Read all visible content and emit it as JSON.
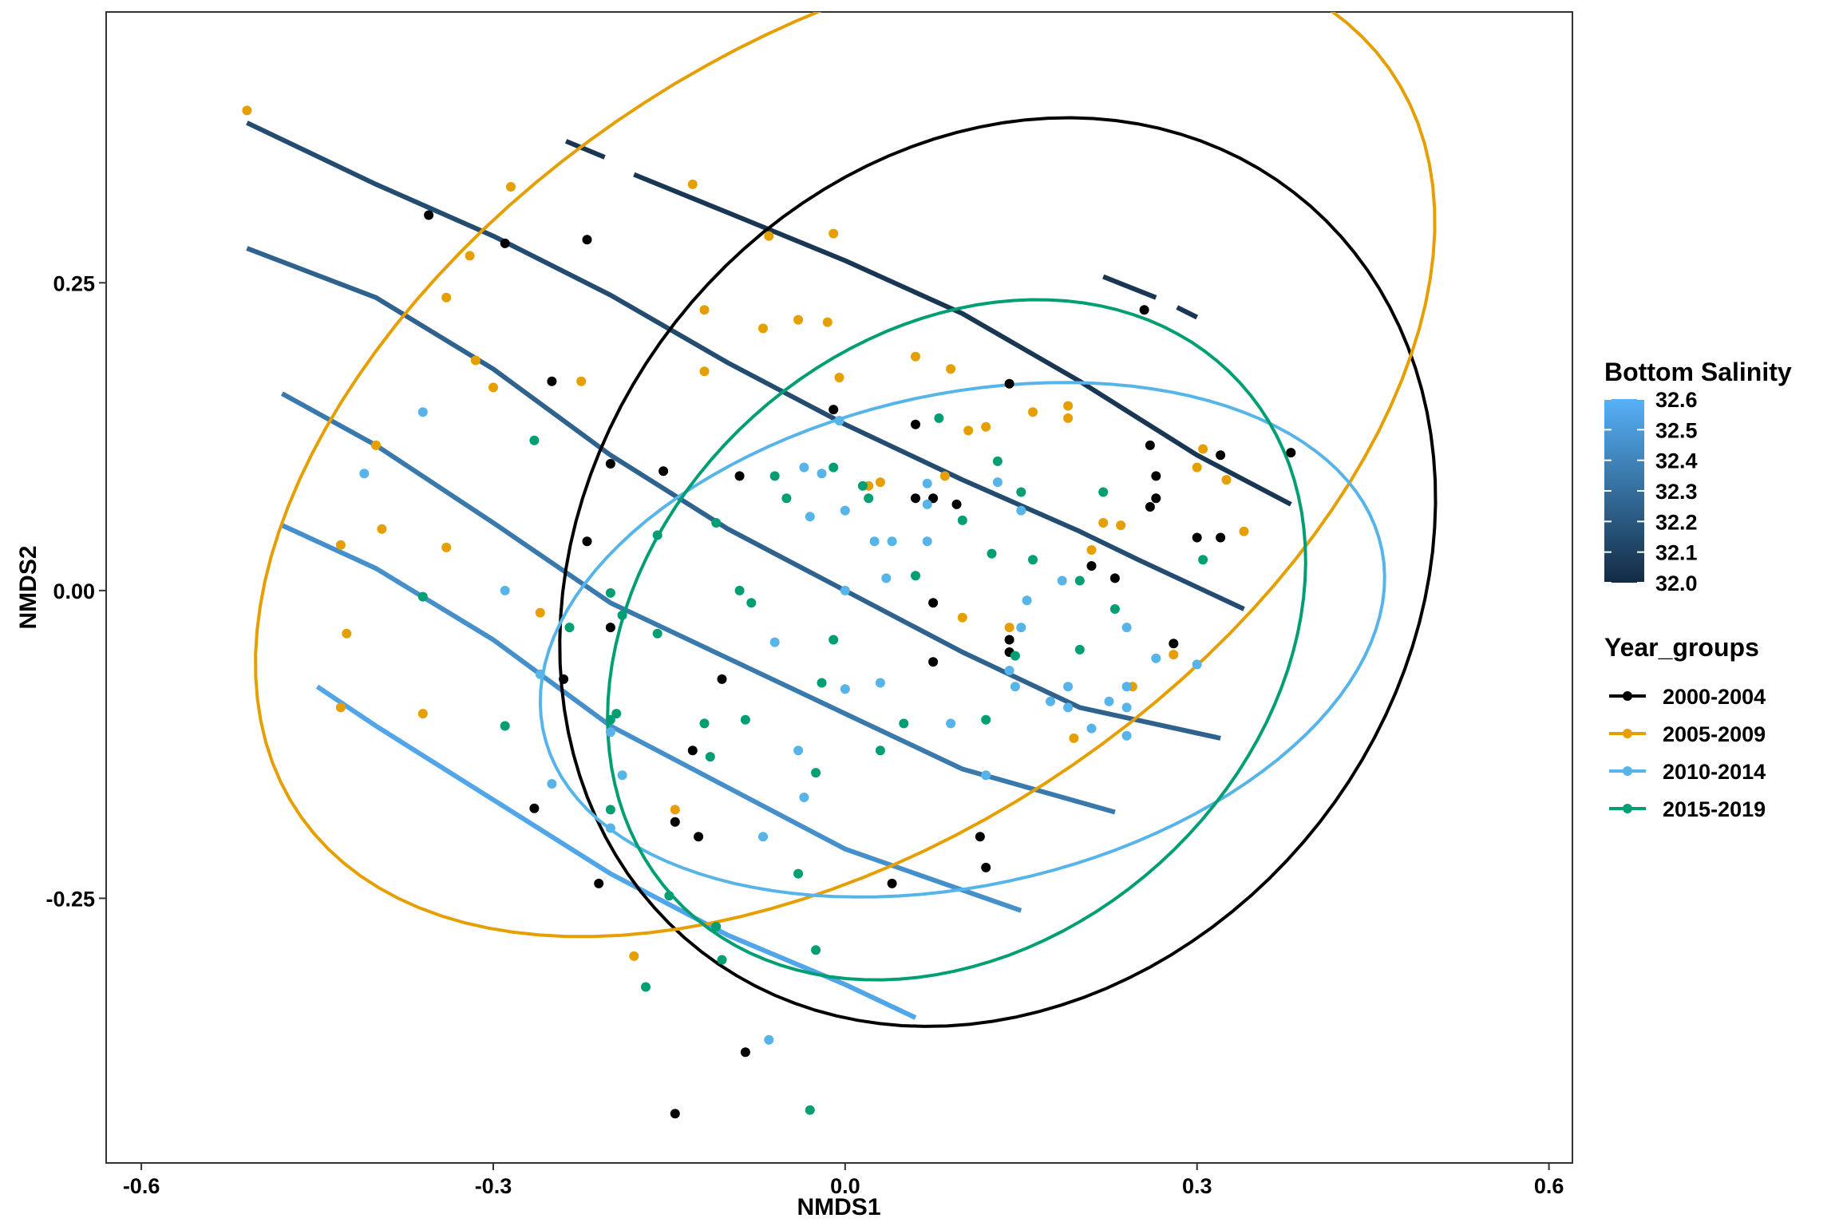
{
  "chart_data": {
    "type": "scatter",
    "xlabel": "NMDS1",
    "ylabel": "NMDS2",
    "xlim": [
      -0.63,
      0.62
    ],
    "ylim": [
      -0.465,
      0.47
    ],
    "x_ticks": [
      -0.6,
      -0.3,
      0.0,
      0.3,
      0.6
    ],
    "x_tick_labels": [
      "-0.6",
      "-0.3",
      "0.0",
      "0.3",
      "0.6"
    ],
    "y_ticks": [
      -0.25,
      0.0,
      0.25
    ],
    "y_tick_labels": [
      "-0.25",
      "0.00",
      "0.25"
    ],
    "grid": false,
    "legend_position": "right",
    "colorbar": {
      "title": "Bottom Salinity",
      "min": 32.0,
      "max": 32.6,
      "ticks": [
        32.6,
        32.5,
        32.4,
        32.3,
        32.2,
        32.1,
        32.0
      ],
      "tick_labels": [
        "32.6",
        "32.5",
        "32.4",
        "32.3",
        "32.2",
        "32.1",
        "32.0"
      ],
      "low_color": "#132b43",
      "high_color": "#56b1f7"
    },
    "legend": {
      "title": "Year_groups",
      "entries": [
        "2000-2004",
        "2005-2009",
        "2010-2014",
        "2015-2019"
      ]
    },
    "series": [
      {
        "name": "2000-2004",
        "color": "#000000",
        "points": [
          [
            -0.355,
            0.305
          ],
          [
            -0.29,
            0.282
          ],
          [
            -0.22,
            0.285
          ],
          [
            -0.25,
            0.17
          ],
          [
            -0.2,
            0.103
          ],
          [
            -0.22,
            0.04
          ],
          [
            -0.2,
            -0.03
          ],
          [
            -0.24,
            -0.072
          ],
          [
            -0.265,
            -0.177
          ],
          [
            -0.21,
            -0.238
          ],
          [
            -0.145,
            -0.188
          ],
          [
            -0.13,
            -0.13
          ],
          [
            -0.125,
            -0.2
          ],
          [
            -0.105,
            -0.072
          ],
          [
            -0.155,
            0.097
          ],
          [
            -0.09,
            0.093
          ],
          [
            -0.01,
            0.147
          ],
          [
            0.06,
            0.135
          ],
          [
            0.06,
            0.075
          ],
          [
            0.075,
            0.075
          ],
          [
            0.095,
            0.07
          ],
          [
            0.14,
            0.168
          ],
          [
            0.075,
            -0.01
          ],
          [
            0.075,
            -0.058
          ],
          [
            0.14,
            -0.04
          ],
          [
            0.14,
            -0.05
          ],
          [
            0.115,
            -0.2
          ],
          [
            0.12,
            -0.225
          ],
          [
            0.04,
            -0.238
          ],
          [
            0.21,
            0.02
          ],
          [
            0.23,
            0.01
          ],
          [
            0.255,
            0.228
          ],
          [
            0.26,
            0.118
          ],
          [
            0.265,
            0.093
          ],
          [
            0.265,
            0.075
          ],
          [
            0.26,
            0.068
          ],
          [
            0.3,
            0.043
          ],
          [
            0.32,
            0.043
          ],
          [
            0.32,
            0.11
          ],
          [
            0.38,
            0.112
          ],
          [
            0.28,
            -0.043
          ],
          [
            -0.145,
            -0.425
          ],
          [
            -0.085,
            -0.375
          ]
        ]
      },
      {
        "name": "2005-2009",
        "color": "#e69f00",
        "points": [
          [
            -0.51,
            0.39
          ],
          [
            -0.285,
            0.328
          ],
          [
            -0.13,
            0.33
          ],
          [
            -0.32,
            0.272
          ],
          [
            -0.34,
            0.238
          ],
          [
            -0.315,
            0.187
          ],
          [
            -0.3,
            0.165
          ],
          [
            -0.4,
            0.118
          ],
          [
            -0.395,
            0.05
          ],
          [
            -0.43,
            0.037
          ],
          [
            -0.34,
            0.035
          ],
          [
            -0.425,
            -0.035
          ],
          [
            -0.43,
            -0.095
          ],
          [
            -0.36,
            -0.1
          ],
          [
            -0.225,
            0.17
          ],
          [
            -0.12,
            0.228
          ],
          [
            -0.065,
            0.288
          ],
          [
            -0.01,
            0.29
          ],
          [
            -0.07,
            0.213
          ],
          [
            -0.04,
            0.22
          ],
          [
            -0.015,
            0.218
          ],
          [
            -0.12,
            0.178
          ],
          [
            -0.005,
            0.173
          ],
          [
            0.06,
            0.19
          ],
          [
            0.09,
            0.18
          ],
          [
            0.105,
            0.13
          ],
          [
            0.12,
            0.133
          ],
          [
            0.16,
            0.145
          ],
          [
            0.19,
            0.15
          ],
          [
            0.19,
            0.14
          ],
          [
            0.03,
            0.088
          ],
          [
            0.02,
            0.085
          ],
          [
            0.085,
            0.093
          ],
          [
            0.22,
            0.055
          ],
          [
            0.235,
            0.053
          ],
          [
            0.21,
            0.033
          ],
          [
            0.1,
            -0.022
          ],
          [
            0.14,
            -0.03
          ],
          [
            0.245,
            -0.078
          ],
          [
            0.3,
            0.1
          ],
          [
            0.305,
            0.115
          ],
          [
            0.325,
            0.09
          ],
          [
            0.34,
            0.048
          ],
          [
            0.28,
            -0.052
          ],
          [
            0.195,
            -0.12
          ],
          [
            -0.26,
            -0.018
          ],
          [
            -0.145,
            -0.178
          ],
          [
            -0.18,
            -0.297
          ]
        ]
      },
      {
        "name": "2010-2014",
        "color": "#56b4e9",
        "points": [
          [
            -0.36,
            0.145
          ],
          [
            -0.41,
            0.095
          ],
          [
            -0.29,
            0.0
          ],
          [
            -0.26,
            -0.068
          ],
          [
            -0.25,
            -0.157
          ],
          [
            -0.2,
            -0.115
          ],
          [
            -0.19,
            -0.15
          ],
          [
            -0.2,
            -0.193
          ],
          [
            -0.035,
            0.1
          ],
          [
            -0.02,
            0.095
          ],
          [
            -0.005,
            0.138
          ],
          [
            0.0,
            0.065
          ],
          [
            -0.03,
            0.06
          ],
          [
            0.025,
            0.04
          ],
          [
            0.04,
            0.04
          ],
          [
            0.035,
            0.01
          ],
          [
            0.07,
            0.04
          ],
          [
            0.07,
            0.087
          ],
          [
            0.07,
            0.07
          ],
          [
            0.13,
            0.088
          ],
          [
            0.15,
            0.065
          ],
          [
            0.0,
            0.0
          ],
          [
            -0.06,
            -0.042
          ],
          [
            0.0,
            -0.08
          ],
          [
            0.03,
            -0.075
          ],
          [
            -0.04,
            -0.13
          ],
          [
            -0.035,
            -0.168
          ],
          [
            -0.07,
            -0.2
          ],
          [
            0.09,
            -0.108
          ],
          [
            0.12,
            -0.15
          ],
          [
            0.14,
            -0.065
          ],
          [
            0.145,
            -0.078
          ],
          [
            0.15,
            -0.03
          ],
          [
            0.155,
            -0.008
          ],
          [
            0.175,
            -0.09
          ],
          [
            0.185,
            0.008
          ],
          [
            0.19,
            -0.095
          ],
          [
            0.19,
            -0.078
          ],
          [
            0.21,
            -0.112
          ],
          [
            0.225,
            -0.09
          ],
          [
            0.24,
            -0.03
          ],
          [
            0.24,
            -0.095
          ],
          [
            0.24,
            -0.118
          ],
          [
            0.24,
            -0.078
          ],
          [
            0.265,
            -0.055
          ],
          [
            0.3,
            -0.06
          ],
          [
            -0.065,
            -0.365
          ]
        ]
      },
      {
        "name": "2015-2019",
        "color": "#009e73",
        "points": [
          [
            -0.265,
            0.122
          ],
          [
            -0.36,
            -0.005
          ],
          [
            -0.29,
            -0.11
          ],
          [
            -0.235,
            -0.03
          ],
          [
            -0.2,
            -0.002
          ],
          [
            -0.2,
            -0.105
          ],
          [
            -0.19,
            -0.02
          ],
          [
            -0.195,
            -0.1
          ],
          [
            -0.16,
            -0.035
          ],
          [
            -0.16,
            0.045
          ],
          [
            -0.12,
            -0.108
          ],
          [
            -0.11,
            0.055
          ],
          [
            -0.09,
            0.0
          ],
          [
            -0.08,
            -0.01
          ],
          [
            -0.06,
            0.093
          ],
          [
            -0.05,
            0.075
          ],
          [
            -0.01,
            0.1
          ],
          [
            0.02,
            0.075
          ],
          [
            0.015,
            0.085
          ],
          [
            0.06,
            0.012
          ],
          [
            0.08,
            0.14
          ],
          [
            0.13,
            0.105
          ],
          [
            0.15,
            0.08
          ],
          [
            0.16,
            0.025
          ],
          [
            0.125,
            0.03
          ],
          [
            0.1,
            0.057
          ],
          [
            0.2,
            0.008
          ],
          [
            0.22,
            0.08
          ],
          [
            0.23,
            -0.015
          ],
          [
            0.2,
            -0.048
          ],
          [
            0.145,
            -0.053
          ],
          [
            0.12,
            -0.105
          ],
          [
            0.05,
            -0.108
          ],
          [
            0.03,
            -0.13
          ],
          [
            -0.01,
            -0.04
          ],
          [
            -0.02,
            -0.075
          ],
          [
            -0.025,
            -0.148
          ],
          [
            -0.085,
            -0.105
          ],
          [
            -0.115,
            -0.135
          ],
          [
            -0.2,
            -0.178
          ],
          [
            -0.15,
            -0.248
          ],
          [
            -0.11,
            -0.273
          ],
          [
            -0.105,
            -0.3
          ],
          [
            -0.04,
            -0.23
          ],
          [
            -0.025,
            -0.292
          ],
          [
            -0.17,
            -0.322
          ],
          [
            -0.03,
            -0.422
          ],
          [
            0.305,
            0.025
          ]
        ]
      }
    ],
    "ellipses": [
      {
        "series": "2000-2004",
        "color": "#000000",
        "cx": 0.13,
        "cy": 0.015,
        "rx": 0.4,
        "ry": 0.34,
        "angle": 0.75
      },
      {
        "series": "2005-2009",
        "color": "#e69f00",
        "cx": 0.0,
        "cy": 0.12,
        "rx": 0.555,
        "ry": 0.325,
        "angle": 0.55
      },
      {
        "series": "2010-2014",
        "color": "#56b4e9",
        "cx": 0.1,
        "cy": -0.04,
        "rx": 0.365,
        "ry": 0.2,
        "angle": 0.2
      },
      {
        "series": "2015-2019",
        "color": "#009e73",
        "cx": 0.095,
        "cy": -0.04,
        "rx": 0.32,
        "ry": 0.25,
        "angle": 0.63
      }
    ],
    "contours": [
      {
        "level": 32.05,
        "segments": [
          [
            [
              -0.238,
              0.365
            ],
            [
              -0.205,
              0.352
            ]
          ],
          [
            [
              -0.18,
              0.338
            ],
            [
              -0.1,
              0.307
            ],
            [
              0.0,
              0.268
            ],
            [
              0.1,
              0.225
            ],
            [
              0.2,
              0.17
            ],
            [
              0.3,
              0.11
            ],
            [
              0.38,
              0.07
            ]
          ],
          [
            [
              0.22,
              0.255
            ],
            [
              0.265,
              0.238
            ]
          ],
          [
            [
              0.283,
              0.23
            ],
            [
              0.3,
              0.222
            ]
          ]
        ]
      },
      {
        "level": 32.15,
        "segments": [
          [
            [
              -0.51,
              0.38
            ],
            [
              -0.4,
              0.33
            ],
            [
              -0.3,
              0.288
            ],
            [
              -0.2,
              0.24
            ],
            [
              -0.1,
              0.185
            ],
            [
              0.0,
              0.135
            ],
            [
              0.1,
              0.09
            ],
            [
              0.2,
              0.048
            ],
            [
              0.25,
              0.025
            ],
            [
              0.34,
              -0.015
            ]
          ]
        ]
      },
      {
        "level": 32.25,
        "segments": [
          [
            [
              -0.51,
              0.278
            ],
            [
              -0.4,
              0.238
            ],
            [
              -0.3,
              0.18
            ],
            [
              -0.2,
              0.11
            ],
            [
              -0.1,
              0.05
            ],
            [
              0.0,
              0.0
            ],
            [
              0.1,
              -0.05
            ],
            [
              0.2,
              -0.095
            ],
            [
              0.32,
              -0.12
            ]
          ]
        ]
      },
      {
        "level": 32.35,
        "segments": [
          [
            [
              -0.48,
              0.16
            ],
            [
              -0.4,
              0.118
            ],
            [
              -0.3,
              0.055
            ],
            [
              -0.2,
              -0.01
            ],
            [
              -0.1,
              -0.055
            ],
            [
              0.0,
              -0.1
            ],
            [
              0.1,
              -0.145
            ],
            [
              0.23,
              -0.18
            ]
          ]
        ]
      },
      {
        "level": 32.45,
        "segments": [
          [
            [
              -0.48,
              0.053
            ],
            [
              -0.4,
              0.018
            ],
            [
              -0.3,
              -0.04
            ],
            [
              -0.2,
              -0.11
            ],
            [
              -0.1,
              -0.16
            ],
            [
              0.0,
              -0.21
            ],
            [
              0.15,
              -0.26
            ]
          ]
        ]
      },
      {
        "level": 32.55,
        "segments": [
          [
            [
              -0.45,
              -0.078
            ],
            [
              -0.4,
              -0.11
            ],
            [
              -0.3,
              -0.17
            ],
            [
              -0.2,
              -0.23
            ],
            [
              -0.1,
              -0.28
            ],
            [
              0.0,
              -0.32
            ],
            [
              0.06,
              -0.347
            ]
          ]
        ]
      }
    ]
  }
}
